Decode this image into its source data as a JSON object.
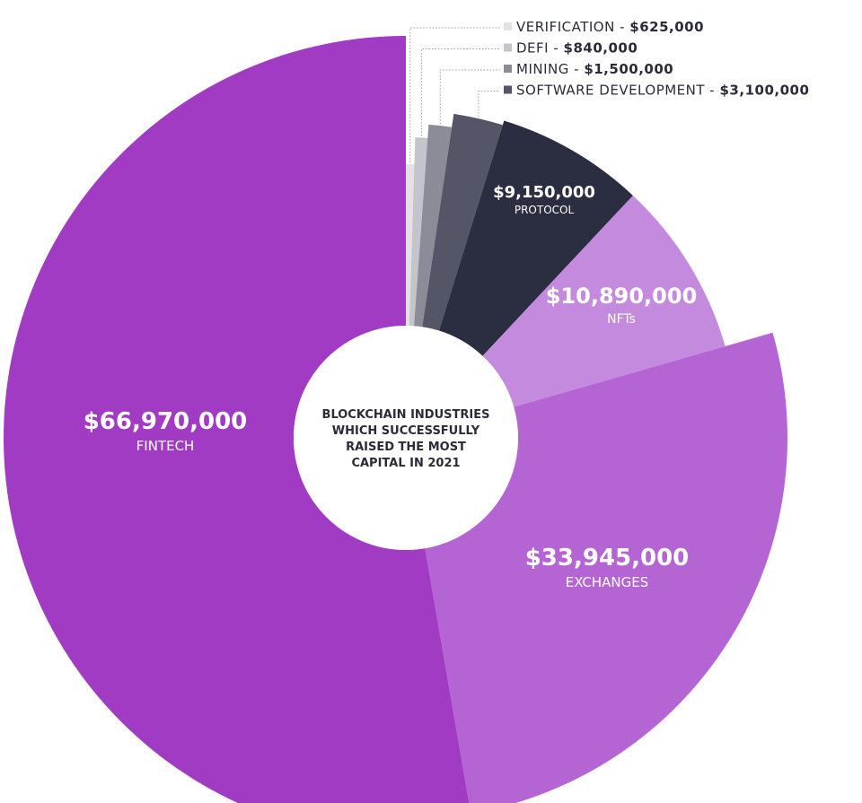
{
  "chart_data": {
    "type": "pie",
    "center_title_lines": [
      "BLOCKCHAIN INDUSTRIES",
      "WHICH SUCCESSFULLY",
      "RAISED THE MOST",
      "CAPITAL IN 2021"
    ],
    "slices": [
      {
        "label": "VERIFICATION",
        "value": 625000,
        "display": "$625,000",
        "color": "#e2e2e6"
      },
      {
        "label": "DEFI",
        "value": 840000,
        "display": "$840,000",
        "color": "#c4c4cc"
      },
      {
        "label": "MINING",
        "value": 1500000,
        "display": "$1,500,000",
        "color": "#8c8c98"
      },
      {
        "label": "SOFTWARE DEVELOPMENT",
        "value": 3100000,
        "display": "$3,100,000",
        "color": "#555568"
      },
      {
        "label": "PROTOCOL",
        "value": 9150000,
        "display": "$9,150,000",
        "color": "#2b2d40"
      },
      {
        "label": "NFTs",
        "value": 10890000,
        "display": "$10,890,000",
        "color": "#c48ade"
      },
      {
        "label": "EXCHANGES",
        "value": 33945000,
        "display": "$33,945,000",
        "color": "#b565d3"
      },
      {
        "label": "FINTECH",
        "value": 66970000,
        "display": "$66,970,000",
        "color": "#a13bc4"
      }
    ],
    "legend_separator": " - "
  }
}
